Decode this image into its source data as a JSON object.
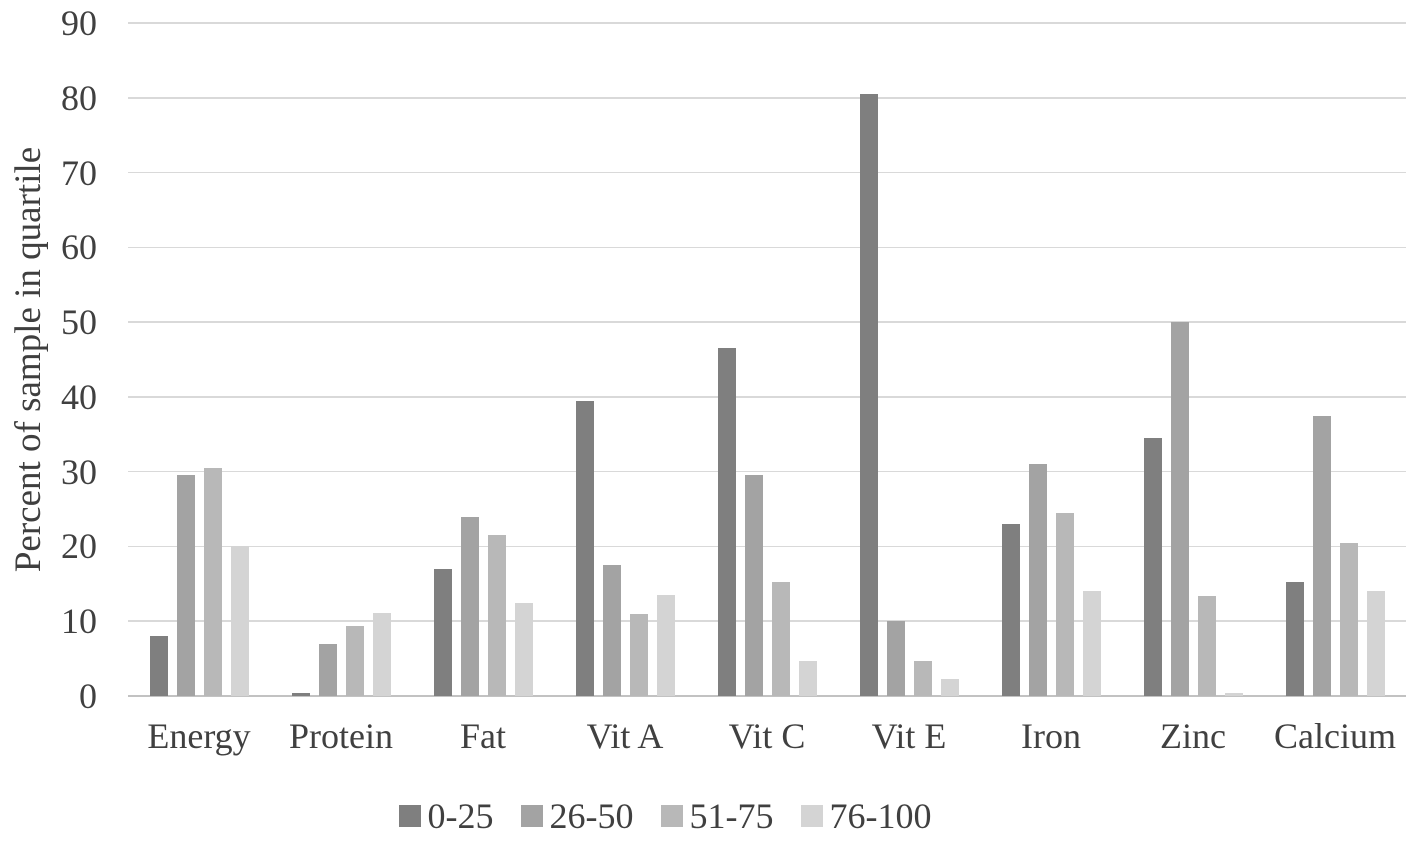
{
  "chart_data": {
    "type": "bar",
    "title": "",
    "xlabel": "",
    "ylabel": "Percent of sample in quartile",
    "ylim": [
      0,
      90
    ],
    "ytick_interval": 10,
    "yticks": [
      0,
      10,
      20,
      30,
      40,
      50,
      60,
      70,
      80,
      90
    ],
    "grid": true,
    "legend_position": "bottom",
    "categories": [
      "Energy",
      "Protein",
      "Fat",
      "Vit A",
      "Vit C",
      "Vit E",
      "Iron",
      "Zinc",
      "Calcium"
    ],
    "series": [
      {
        "name": "0-25",
        "color": "#7f7f7f",
        "values": [
          8,
          0.4,
          17,
          39.4,
          46.5,
          80.5,
          23,
          34.5,
          15.3
        ]
      },
      {
        "name": "26-50",
        "color": "#a3a3a3",
        "values": [
          29.5,
          7,
          24,
          17.5,
          29.5,
          10,
          31,
          50,
          37.5
        ]
      },
      {
        "name": "51-75",
        "color": "#b8b8b8",
        "values": [
          30.5,
          9.3,
          21.5,
          11,
          15.3,
          4.7,
          24.5,
          13.4,
          20.5
        ]
      },
      {
        "name": "76-100",
        "color": "#d4d4d4",
        "values": [
          20,
          11.1,
          12.5,
          13.5,
          4.7,
          2.3,
          14,
          0.4,
          14
        ]
      }
    ],
    "colors": {
      "gridline": "#d9d9d9",
      "axis_line": "#c2c2c2",
      "text": "#404040",
      "background": "#ffffff"
    }
  }
}
